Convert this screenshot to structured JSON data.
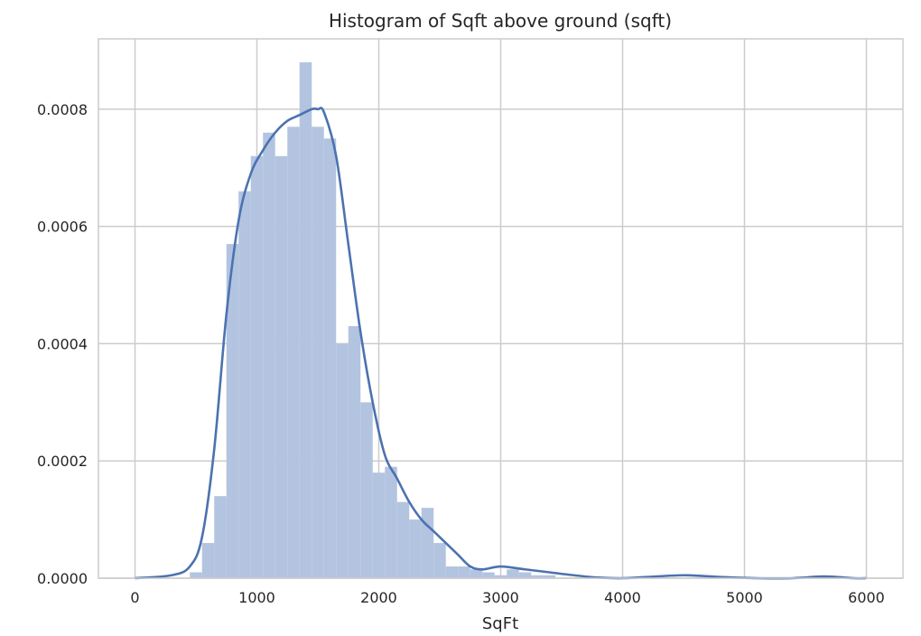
{
  "chart_data": {
    "type": "bar",
    "title": "Histogram of Sqft above ground (sqft)",
    "xlabel": "SqFt",
    "ylabel": "",
    "xlim": [
      -300,
      6300
    ],
    "ylim": [
      0,
      0.00092
    ],
    "grid": true,
    "xticks": [
      0,
      1000,
      2000,
      3000,
      4000,
      5000,
      6000
    ],
    "yticks": [
      0.0,
      0.0002,
      0.0004,
      0.0006,
      0.0008
    ],
    "ytick_labels": [
      "0.0000",
      "0.0002",
      "0.0004",
      "0.0006",
      "0.0008"
    ],
    "bin_width": 100,
    "histogram": {
      "name": "",
      "color": "#b3c4e0",
      "bins": [
        {
          "x0": 450,
          "x1": 550,
          "density": 1e-05
        },
        {
          "x0": 550,
          "x1": 650,
          "density": 6e-05
        },
        {
          "x0": 650,
          "x1": 750,
          "density": 0.00014
        },
        {
          "x0": 750,
          "x1": 850,
          "density": 0.00057
        },
        {
          "x0": 850,
          "x1": 950,
          "density": 0.00066
        },
        {
          "x0": 950,
          "x1": 1050,
          "density": 0.00072
        },
        {
          "x0": 1050,
          "x1": 1150,
          "density": 0.00076
        },
        {
          "x0": 1150,
          "x1": 1250,
          "density": 0.00072
        },
        {
          "x0": 1250,
          "x1": 1350,
          "density": 0.00077
        },
        {
          "x0": 1350,
          "x1": 1450,
          "density": 0.00088
        },
        {
          "x0": 1450,
          "x1": 1550,
          "density": 0.00077
        },
        {
          "x0": 1550,
          "x1": 1650,
          "density": 0.00075
        },
        {
          "x0": 1650,
          "x1": 1750,
          "density": 0.0004
        },
        {
          "x0": 1750,
          "x1": 1850,
          "density": 0.00043
        },
        {
          "x0": 1850,
          "x1": 1950,
          "density": 0.0003
        },
        {
          "x0": 1950,
          "x1": 2050,
          "density": 0.00018
        },
        {
          "x0": 2050,
          "x1": 2150,
          "density": 0.00019
        },
        {
          "x0": 2150,
          "x1": 2250,
          "density": 0.00013
        },
        {
          "x0": 2250,
          "x1": 2350,
          "density": 0.0001
        },
        {
          "x0": 2350,
          "x1": 2450,
          "density": 0.00012
        },
        {
          "x0": 2450,
          "x1": 2550,
          "density": 6e-05
        },
        {
          "x0": 2550,
          "x1": 2650,
          "density": 2e-05
        },
        {
          "x0": 2650,
          "x1": 2750,
          "density": 2e-05
        },
        {
          "x0": 2750,
          "x1": 2850,
          "density": 1.5e-05
        },
        {
          "x0": 2850,
          "x1": 2950,
          "density": 1e-05
        },
        {
          "x0": 2950,
          "x1": 3050,
          "density": 5e-06
        },
        {
          "x0": 3050,
          "x1": 3150,
          "density": 1.5e-05
        },
        {
          "x0": 3150,
          "x1": 3250,
          "density": 1e-05
        },
        {
          "x0": 3250,
          "x1": 3350,
          "density": 5e-06
        },
        {
          "x0": 3350,
          "x1": 3450,
          "density": 5e-06
        }
      ]
    },
    "kde": {
      "name": "",
      "color": "#4c72b0",
      "x": [
        0,
        300,
        450,
        550,
        650,
        750,
        850,
        950,
        1050,
        1150,
        1250,
        1350,
        1450,
        1500,
        1550,
        1650,
        1750,
        1850,
        1950,
        2050,
        2150,
        2250,
        2350,
        2450,
        2550,
        2650,
        2750,
        2850,
        3000,
        3200,
        3400,
        3600,
        3800,
        4000,
        4200,
        4500,
        4800,
        5100,
        5400,
        5650,
        5900,
        6000
      ],
      "y": [
        0.0,
        5e-06,
        2e-05,
        7e-05,
        0.00022,
        0.00045,
        0.00061,
        0.00069,
        0.00073,
        0.00076,
        0.00078,
        0.00079,
        0.0008,
        0.0008,
        0.000795,
        0.00072,
        0.00057,
        0.00042,
        0.0003,
        0.00021,
        0.00017,
        0.00013,
        0.0001,
        8e-05,
        6e-05,
        4e-05,
        2e-05,
        1.5e-05,
        2e-05,
        1.5e-05,
        1e-05,
        5e-06,
        1e-06,
        0.0,
        2e-06,
        5e-06,
        2e-06,
        0.0,
        0.0,
        3e-06,
        0.0,
        0.0
      ]
    }
  }
}
